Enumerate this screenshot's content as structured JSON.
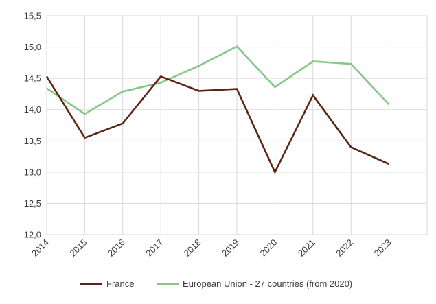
{
  "chart_data": {
    "type": "line",
    "title": "",
    "xlabel": "",
    "ylabel": "",
    "categories": [
      "2014",
      "2015",
      "2016",
      "2017",
      "2018",
      "2019",
      "2020",
      "2021",
      "2022",
      "2023"
    ],
    "y_ticks": [
      "12,0",
      "12,5",
      "13,0",
      "13,5",
      "14,0",
      "14,5",
      "15,0",
      "15,5"
    ],
    "ylim": [
      12.0,
      15.5
    ],
    "grid": true,
    "legend_position": "bottom",
    "series": [
      {
        "name": "France",
        "color": "#5a2515",
        "values": [
          14.53,
          13.55,
          13.78,
          14.53,
          14.3,
          14.33,
          13.0,
          14.23,
          13.4,
          13.13
        ]
      },
      {
        "name": "European Union - 27 countries (from 2020)",
        "color": "#86c788",
        "values": [
          14.34,
          13.93,
          14.29,
          14.43,
          14.7,
          15.01,
          14.36,
          14.77,
          14.73,
          14.08
        ]
      }
    ]
  }
}
